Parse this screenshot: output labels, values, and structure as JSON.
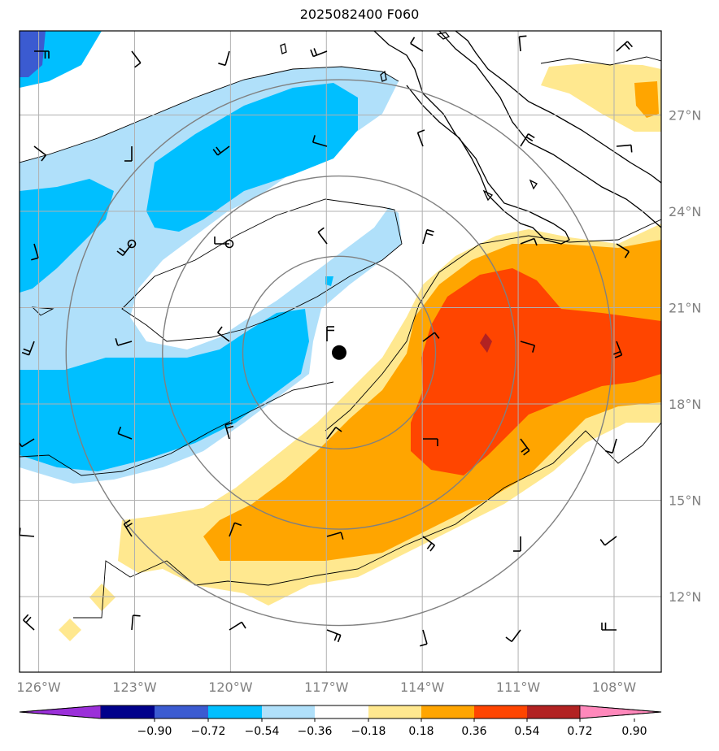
{
  "title": "2025082400 F060",
  "colors": {
    "land_coast": "#000000",
    "grid": "#b0b0b0",
    "range_rings": "#808080",
    "contour": "#000000",
    "center_marker": "#000000"
  },
  "map": {
    "lon_ticks": [
      {
        "value": -126,
        "label": "126°W"
      },
      {
        "value": -123,
        "label": "123°W"
      },
      {
        "value": -120,
        "label": "120°W"
      },
      {
        "value": -117,
        "label": "117°W"
      },
      {
        "value": -114,
        "label": "114°W"
      },
      {
        "value": -111,
        "label": "111°W"
      },
      {
        "value": -108,
        "label": "108°W"
      }
    ],
    "lat_ticks": [
      {
        "value": 12,
        "label": "12°N"
      },
      {
        "value": 15,
        "label": "15°N"
      },
      {
        "value": 18,
        "label": "18°N"
      },
      {
        "value": 21,
        "label": "21°N"
      },
      {
        "value": 24,
        "label": "24°N"
      },
      {
        "value": 27,
        "label": "27°N"
      }
    ],
    "storm_center": {
      "lon": -116.6,
      "lat": 19.6
    },
    "range_rings_deg": [
      3,
      5.5,
      8.5
    ]
  },
  "colorbar": {
    "extend": "both",
    "levels": [
      "−0.90",
      "−0.72",
      "−0.54",
      "−0.36",
      "−0.18",
      "0.18",
      "0.36",
      "0.54",
      "0.72",
      "0.90"
    ],
    "colors": [
      "#9b30d9",
      "#00008b",
      "#3b5bd1",
      "#00bfff",
      "#b0e0fa",
      "#ffffff",
      "#ffe88f",
      "#ffa500",
      "#ff4500",
      "#b22222",
      "#ff88bb"
    ]
  }
}
